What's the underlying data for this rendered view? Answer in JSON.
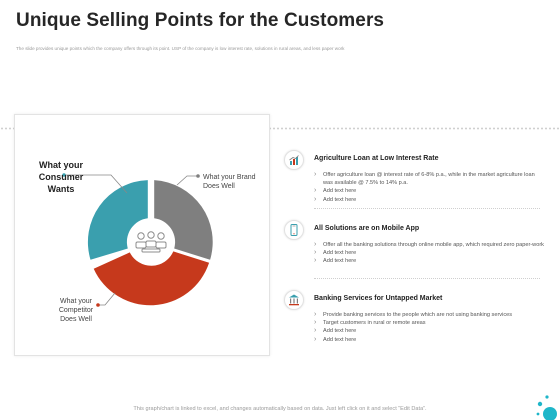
{
  "header": {
    "title": "Unique Selling Points for the Customers",
    "subtitle": "The slide provides unique points which the company offers through its point. USP of the company is low interest rate, solutions in rural areas, and less paper work"
  },
  "diagram": {
    "center_label": "What your Consumer Wants",
    "top_right_label": "What your Brand Does Well",
    "bottom_left_label": "What your Competitor Does Well",
    "center_icon": "people-group-icon",
    "segments": [
      {
        "label": "What your Brand Does Well",
        "color": "#7f7f7f"
      },
      {
        "label": "What your Competitor Does Well",
        "color": "#c6391c"
      },
      {
        "label": "What your Consumer Wants",
        "color": "#3a9fae"
      }
    ]
  },
  "points": [
    {
      "icon": "growth-chart-icon",
      "title": "Agriculture Loan at Low Interest Rate",
      "bullets": [
        "Offer agriculture loan @ interest rate of 6-8% p.a., while in the market agriculture loan was available @ 7.5% to 14% p.a.",
        "Add text here",
        "Add text here"
      ]
    },
    {
      "icon": "mobile-app-icon",
      "title": "All Solutions are on Mobile App",
      "bullets": [
        "Offer all the banking solutions through online mobile app, which required zero paper-work",
        "Add text here",
        "Add text here"
      ]
    },
    {
      "icon": "bank-building-icon",
      "title": "Banking Services for Untapped Market",
      "bullets": [
        "Provide banking services to the people which are not using banking services",
        "Target customers in rural or remote areas",
        "Add text here",
        "Add text here"
      ]
    }
  ],
  "footer": {
    "note": "This graph/chart is linked to excel, and changes automatically based on data. Just left click on it and select “Edit Data”."
  },
  "colors": {
    "teal": "#3a9fae",
    "red": "#c6391c",
    "gray": "#7f7f7f",
    "accent_dot": "#1fb6c9"
  }
}
